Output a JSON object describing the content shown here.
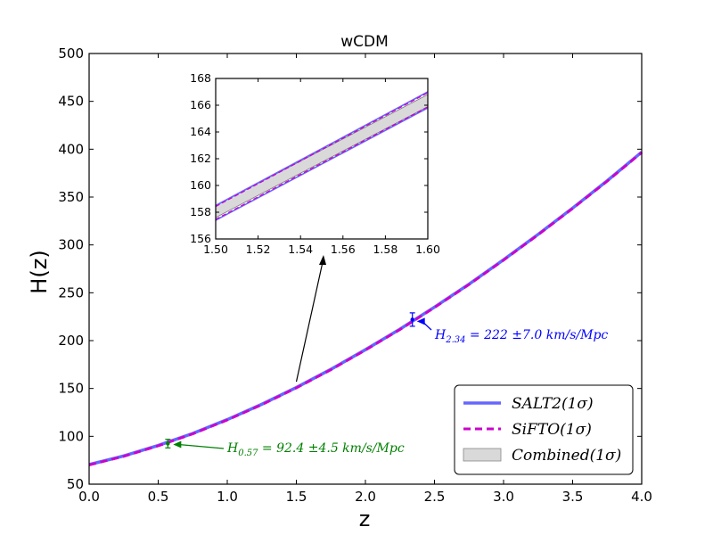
{
  "chart_data": {
    "type": "line",
    "title": "wCDM",
    "xlabel": "z",
    "ylabel": "H(z)",
    "xlim": [
      0.0,
      4.0
    ],
    "ylim": [
      50,
      500
    ],
    "xticks": [
      "0.0",
      "0.5",
      "1.0",
      "1.5",
      "2.0",
      "2.5",
      "3.0",
      "3.5",
      "4.0"
    ],
    "yticks": [
      "50",
      "100",
      "150",
      "200",
      "250",
      "300",
      "350",
      "400",
      "450",
      "500"
    ],
    "series": [
      {
        "name": "SALT2(1σ)",
        "color": "#6666ff",
        "style": "solid",
        "x": [
          0.0,
          0.25,
          0.5,
          0.75,
          1.0,
          1.25,
          1.5,
          1.75,
          2.0,
          2.25,
          2.5,
          2.75,
          3.0,
          3.25,
          3.5,
          3.75,
          4.0
        ],
        "y": [
          70.5,
          79.5,
          90.5,
          103,
          117.5,
          133.5,
          151,
          170,
          190.5,
          212,
          235,
          259,
          284.5,
          311,
          338.5,
          367,
          397
        ]
      },
      {
        "name": "SiFTO(1σ)",
        "color": "#cc00cc",
        "style": "dashed",
        "x": [
          0.0,
          0.25,
          0.5,
          0.75,
          1.0,
          1.25,
          1.5,
          1.75,
          2.0,
          2.25,
          2.5,
          2.75,
          3.0,
          3.25,
          3.5,
          3.75,
          4.0
        ],
        "y": [
          70,
          79,
          90,
          102.5,
          117,
          133,
          150.5,
          169.5,
          190,
          211.5,
          234.5,
          258.5,
          284,
          310.5,
          338,
          366.5,
          396.5
        ]
      }
    ],
    "band": {
      "name": "Combined(1σ)",
      "color": "#d9d9d9"
    },
    "data_points": [
      {
        "z": 0.57,
        "H": 92.4,
        "err": 4.5,
        "color": "#008000",
        "label_sub": "0.57",
        "label_rest": " = 92.4 ±4.5 km/s/Mpc"
      },
      {
        "z": 2.34,
        "H": 222,
        "err": 7.0,
        "color": "#0000ff",
        "label_sub": "2.34",
        "label_rest": " = 222 ±7.0 km/s/Mpc"
      }
    ],
    "inset": {
      "xlim": [
        1.5,
        1.6
      ],
      "ylim": [
        156,
        168
      ],
      "xticks": [
        "1.50",
        "1.52",
        "1.54",
        "1.56",
        "1.58",
        "1.60"
      ],
      "yticks": [
        "156",
        "158",
        "160",
        "162",
        "164",
        "166",
        "168"
      ],
      "upper_line": {
        "y0": 158.5,
        "y1": 167.0
      },
      "lower_line": {
        "y0": 157.4,
        "y1": 165.8
      },
      "band_upper": {
        "y0": 158.5,
        "y1": 166.8
      },
      "band_lower": {
        "y0": 157.6,
        "y1": 165.9
      }
    },
    "legend": {
      "position": "lower-right",
      "entries": [
        "SALT2(1σ)",
        "SiFTO(1σ)",
        "Combined(1σ)"
      ]
    }
  }
}
